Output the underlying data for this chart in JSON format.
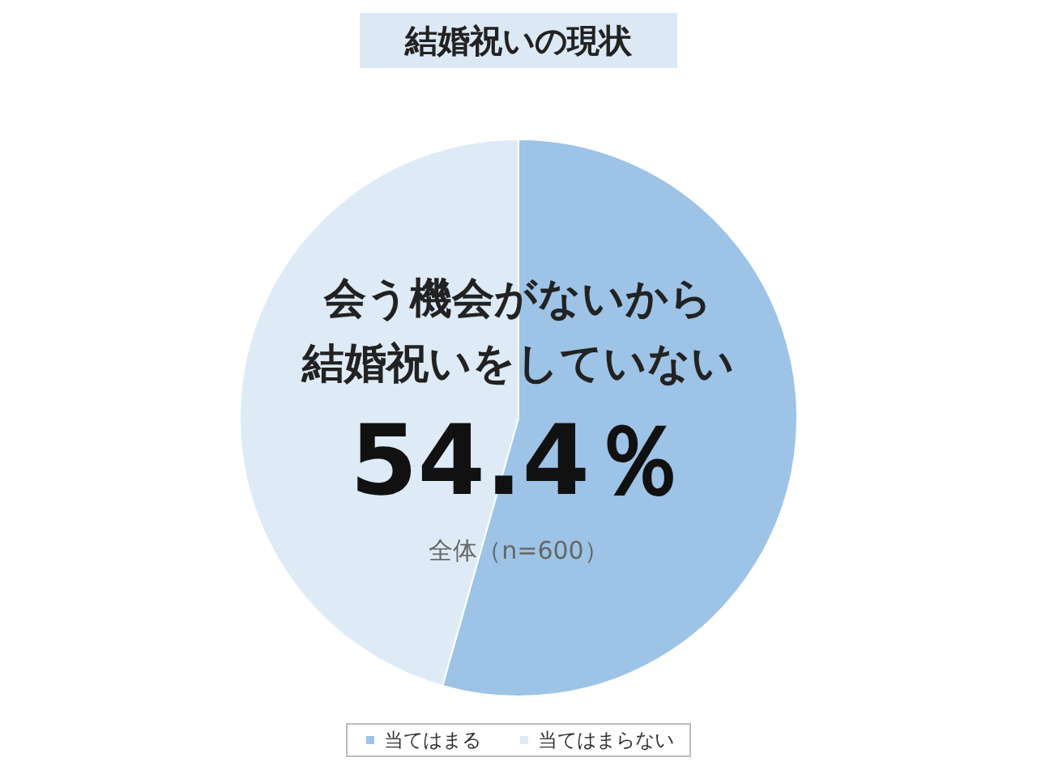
{
  "chart_data": {
    "type": "pie",
    "title": "結婚祝いの現状",
    "categories": [
      "当てはまる",
      "当てはまらない"
    ],
    "values": [
      54.4,
      45.6
    ],
    "colors": [
      "#9dc3e6",
      "#deebf7"
    ],
    "annotations": [
      "会う機会がないから",
      "結婚祝いをしていない",
      "54.4％",
      "全体（n=600）"
    ],
    "legend": "bottom"
  }
}
